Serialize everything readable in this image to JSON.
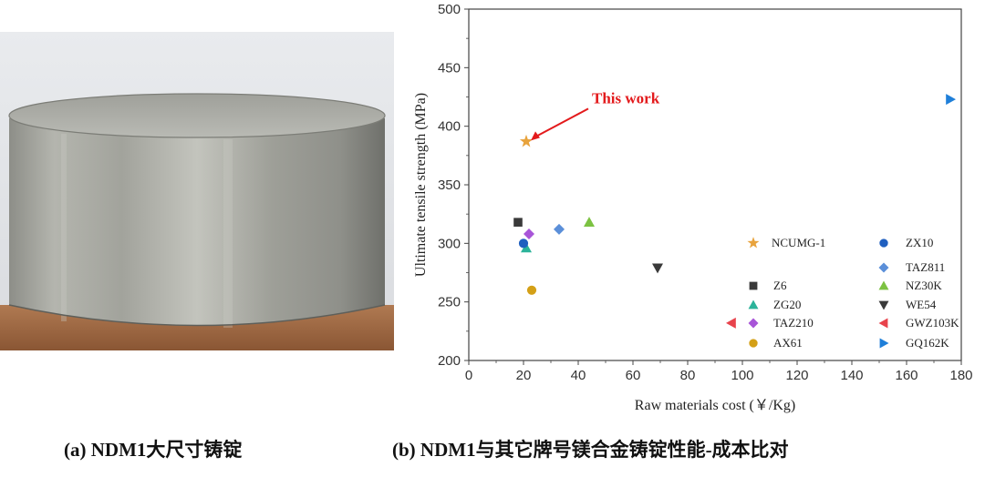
{
  "captions": {
    "a": "(a) NDM1大尺寸铸锭",
    "b": "(b) NDM1与其它牌号镁合金铸锭性能-成本比对"
  },
  "chart_data": {
    "type": "scatter",
    "title": "",
    "xlabel": "Raw materials cost (￥/Kg)",
    "ylabel": "Ultimate tensile strength (MPa)",
    "xlim": [
      0,
      180
    ],
    "ylim": [
      200,
      500
    ],
    "xticks": [
      0,
      20,
      40,
      60,
      80,
      100,
      120,
      140,
      160,
      180
    ],
    "yticks": [
      200,
      250,
      300,
      350,
      400,
      450,
      500
    ],
    "grid": false,
    "legend_position": "bottom-right",
    "annotation": {
      "text": "This work",
      "x": 21,
      "y": 387
    },
    "series": [
      {
        "name": "NCUMG-1",
        "marker": "star",
        "color": "#e8a33d",
        "points": [
          [
            21,
            387
          ]
        ]
      },
      {
        "name": "Z6",
        "marker": "square",
        "color": "#3a3a3a",
        "points": [
          [
            18,
            318
          ]
        ]
      },
      {
        "name": "ZG20",
        "marker": "triangle-up",
        "color": "#2bb39a",
        "points": [
          [
            21,
            296
          ]
        ]
      },
      {
        "name": "TAZ210",
        "marker": "diamond",
        "color": "#a855d8",
        "points": [
          [
            22,
            308
          ]
        ]
      },
      {
        "name": "AX61",
        "marker": "circle",
        "color": "#d4a017",
        "points": [
          [
            23,
            260
          ]
        ]
      },
      {
        "name": "ZX10",
        "marker": "circle",
        "color": "#1f5fbf",
        "points": [
          [
            20,
            300
          ]
        ]
      },
      {
        "name": "TAZ811",
        "marker": "diamond",
        "color": "#5b8fd9",
        "points": [
          [
            33,
            312
          ]
        ]
      },
      {
        "name": "NZ30K",
        "marker": "triangle-up",
        "color": "#7cc242",
        "points": [
          [
            44,
            318
          ]
        ]
      },
      {
        "name": "WE54",
        "marker": "triangle-down",
        "color": "#3a3a3a",
        "points": [
          [
            69,
            279
          ]
        ]
      },
      {
        "name": "GWZ103K",
        "marker": "triangle-left",
        "color": "#e8434c",
        "points": [
          [
            96,
            232
          ]
        ]
      },
      {
        "name": "GQ162K",
        "marker": "triangle-right",
        "color": "#1f7fd9",
        "points": [
          [
            176,
            423
          ]
        ]
      }
    ]
  }
}
